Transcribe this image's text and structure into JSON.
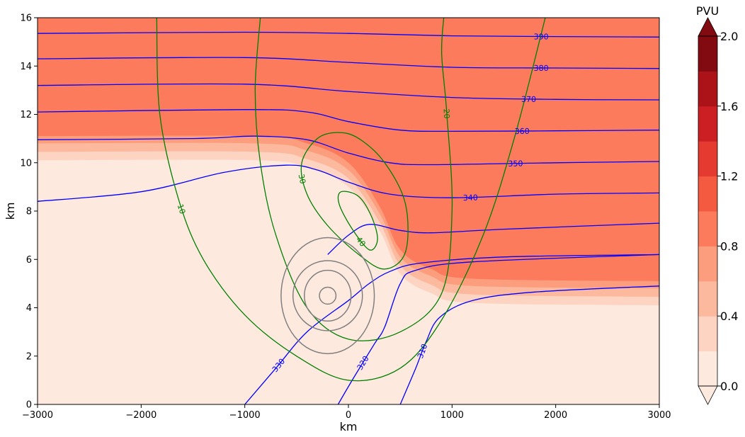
{
  "chart_data": {
    "type": "contour",
    "xlabel": "km",
    "ylabel": "km",
    "xlim": [
      -3000,
      3000
    ],
    "ylim": [
      0,
      16
    ],
    "xticks": [
      -3000,
      -2000,
      -1000,
      0,
      1000,
      2000,
      3000
    ],
    "xtick_labels": [
      "−3000",
      "−2000",
      "−1000",
      "0",
      "1000",
      "2000",
      "3000"
    ],
    "yticks": [
      0,
      2,
      4,
      6,
      8,
      10,
      12,
      14,
      16
    ],
    "ytick_labels": [
      "0",
      "2",
      "4",
      "6",
      "8",
      "10",
      "12",
      "14",
      "16"
    ],
    "grid": false,
    "colorbar": {
      "label": "PVU",
      "min": 0.0,
      "max": 2.0,
      "ticks": [
        "0.0",
        "0.4",
        "0.8",
        "1.2",
        "1.6",
        "2.0"
      ],
      "levels": [
        0.0,
        0.2,
        0.4,
        0.6,
        0.8,
        1.0,
        1.2,
        1.4,
        1.6,
        1.8,
        2.0
      ],
      "colors": [
        "#fee9df",
        "#fdd3c1",
        "#fcb99d",
        "#fc9e7d",
        "#fb7b5c",
        "#f35a40",
        "#e43a2f",
        "#cc1f24",
        "#ab1319",
        "#820a11"
      ],
      "extend": "both"
    },
    "pv_field": {
      "stratosphere_value": 0.9,
      "background_value": 0.1,
      "boundary_upstream": [
        [
          -3000,
          11.1
        ],
        [
          -900,
          11.1
        ],
        [
          -400,
          10.8
        ],
        [
          0,
          10.0
        ],
        [
          300,
          8.2
        ],
        [
          500,
          6.4
        ],
        [
          800,
          5.6
        ],
        [
          1200,
          5.2
        ],
        [
          3000,
          5.1
        ]
      ],
      "transition_bands": [
        {
          "level": 0.7,
          "offset_km": 0.3
        },
        {
          "level": 0.5,
          "offset_km": 0.65
        },
        {
          "level": 0.3,
          "offset_km": 1.0
        }
      ]
    },
    "theta_contours": {
      "color": "#0000ff",
      "lines": [
        {
          "label": "390",
          "points": [
            [
              -3000,
              15.35
            ],
            [
              -1000,
              15.4
            ],
            [
              0,
              15.35
            ],
            [
              1000,
              15.25
            ],
            [
              2000,
              15.22
            ],
            [
              3000,
              15.2
            ]
          ]
        },
        {
          "label": "380",
          "points": [
            [
              -3000,
              14.3
            ],
            [
              -1000,
              14.35
            ],
            [
              0,
              14.15
            ],
            [
              1000,
              13.95
            ],
            [
              2000,
              13.92
            ],
            [
              3000,
              13.9
            ]
          ]
        },
        {
          "label": "370",
          "points": [
            [
              -3000,
              13.2
            ],
            [
              -1000,
              13.25
            ],
            [
              0,
              12.95
            ],
            [
              1000,
              12.7
            ],
            [
              2000,
              12.62
            ],
            [
              3000,
              12.6
            ]
          ]
        },
        {
          "label": "360",
          "points": [
            [
              -3000,
              12.1
            ],
            [
              -1000,
              12.2
            ],
            [
              -400,
              12.1
            ],
            [
              0,
              11.7
            ],
            [
              500,
              11.35
            ],
            [
              1000,
              11.3
            ],
            [
              2000,
              11.32
            ],
            [
              3000,
              11.35
            ]
          ]
        },
        {
          "label": "350",
          "points": [
            [
              -3000,
              10.95
            ],
            [
              -1500,
              11.0
            ],
            [
              -900,
              11.1
            ],
            [
              -400,
              10.95
            ],
            [
              0,
              10.4
            ],
            [
              400,
              10.0
            ],
            [
              800,
              9.92
            ],
            [
              2000,
              10.0
            ],
            [
              3000,
              10.05
            ]
          ]
        },
        {
          "label": "340",
          "points": [
            [
              -3000,
              8.4
            ],
            [
              -2000,
              8.8
            ],
            [
              -1200,
              9.6
            ],
            [
              -600,
              9.9
            ],
            [
              -300,
              9.7
            ],
            [
              0,
              9.2
            ],
            [
              400,
              8.7
            ],
            [
              1000,
              8.55
            ],
            [
              2000,
              8.7
            ],
            [
              3000,
              8.75
            ]
          ]
        },
        {
          "label": "",
          "points": [
            [
              -200,
              6.2
            ],
            [
              0,
              7.0
            ],
            [
              200,
              7.45
            ],
            [
              500,
              7.2
            ],
            [
              800,
              7.1
            ],
            [
              1500,
              7.25
            ],
            [
              3000,
              7.5
            ]
          ]
        },
        {
          "label": "330",
          "points": [
            [
              -1000,
              0.0
            ],
            [
              -700,
              1.5
            ],
            [
              -400,
              3.0
            ],
            [
              0,
              4.3
            ],
            [
              200,
              5.0
            ],
            [
              400,
              5.5
            ],
            [
              700,
              5.85
            ],
            [
              1500,
              6.1
            ],
            [
              3000,
              6.2
            ]
          ]
        },
        {
          "label": "320",
          "points": [
            [
              -100,
              0.0
            ],
            [
              50,
              1.1
            ],
            [
              250,
              2.5
            ],
            [
              350,
              3.2
            ],
            [
              500,
              5.0
            ],
            [
              650,
              5.55
            ],
            [
              1200,
              5.9
            ],
            [
              3000,
              6.2
            ]
          ]
        },
        {
          "label": "310",
          "points": [
            [
              500,
              0.0
            ],
            [
              650,
              1.5
            ],
            [
              750,
              2.6
            ],
            [
              880,
              3.6
            ],
            [
              1200,
              4.3
            ],
            [
              1800,
              4.65
            ],
            [
              3000,
              4.9
            ]
          ]
        }
      ]
    },
    "speed_contours": {
      "color": "#008000",
      "lines": [
        {
          "label": "10",
          "points": [
            [
              -1850,
              16.0
            ],
            [
              -1820,
              12.0
            ],
            [
              -1640,
              8.5
            ],
            [
              -1400,
              6.0
            ],
            [
              -1000,
              3.7
            ],
            [
              -500,
              2.0
            ],
            [
              0,
              1.0
            ],
            [
              500,
              1.5
            ],
            [
              900,
              3.5
            ],
            [
              1300,
              7.0
            ],
            [
              1600,
              11.0
            ],
            [
              1900,
              16.0
            ]
          ]
        },
        {
          "label": "20",
          "points": [
            [
              -850,
              16.0
            ],
            [
              -900,
              13.0
            ],
            [
              -850,
              10.0
            ],
            [
              -700,
              7.0
            ],
            [
              -400,
              4.0
            ],
            [
              0,
              2.7
            ],
            [
              500,
              3.0
            ],
            [
              900,
              4.6
            ],
            [
              1000,
              8.0
            ],
            [
              950,
              12.0
            ],
            [
              900,
              14.5
            ],
            [
              920,
              16.0
            ]
          ]
        },
        {
          "label": "30",
          "points": [
            [
              -100,
              11.25
            ],
            [
              -300,
              11.0
            ],
            [
              -450,
              10.0
            ],
            [
              -400,
              8.7
            ],
            [
              -200,
              7.4
            ],
            [
              100,
              6.2
            ],
            [
              350,
              5.6
            ],
            [
              550,
              6.3
            ],
            [
              550,
              8.3
            ],
            [
              350,
              10.0
            ],
            [
              100,
              11.0
            ],
            [
              -100,
              11.25
            ]
          ]
        },
        {
          "label": "40",
          "points": [
            [
              -70,
              8.8
            ],
            [
              -90,
              8.3
            ],
            [
              30,
              7.3
            ],
            [
              200,
              6.4
            ],
            [
              280,
              6.8
            ],
            [
              230,
              7.7
            ],
            [
              100,
              8.6
            ],
            [
              -70,
              8.8
            ]
          ]
        }
      ]
    },
    "gray_rings": {
      "color": "#808080",
      "center": [
        -200,
        4.5
      ],
      "radii_km": [
        [
          80,
          0.35
        ],
        [
          225,
          1.05
        ],
        [
          335,
          1.45
        ],
        [
          450,
          2.4
        ]
      ]
    }
  }
}
